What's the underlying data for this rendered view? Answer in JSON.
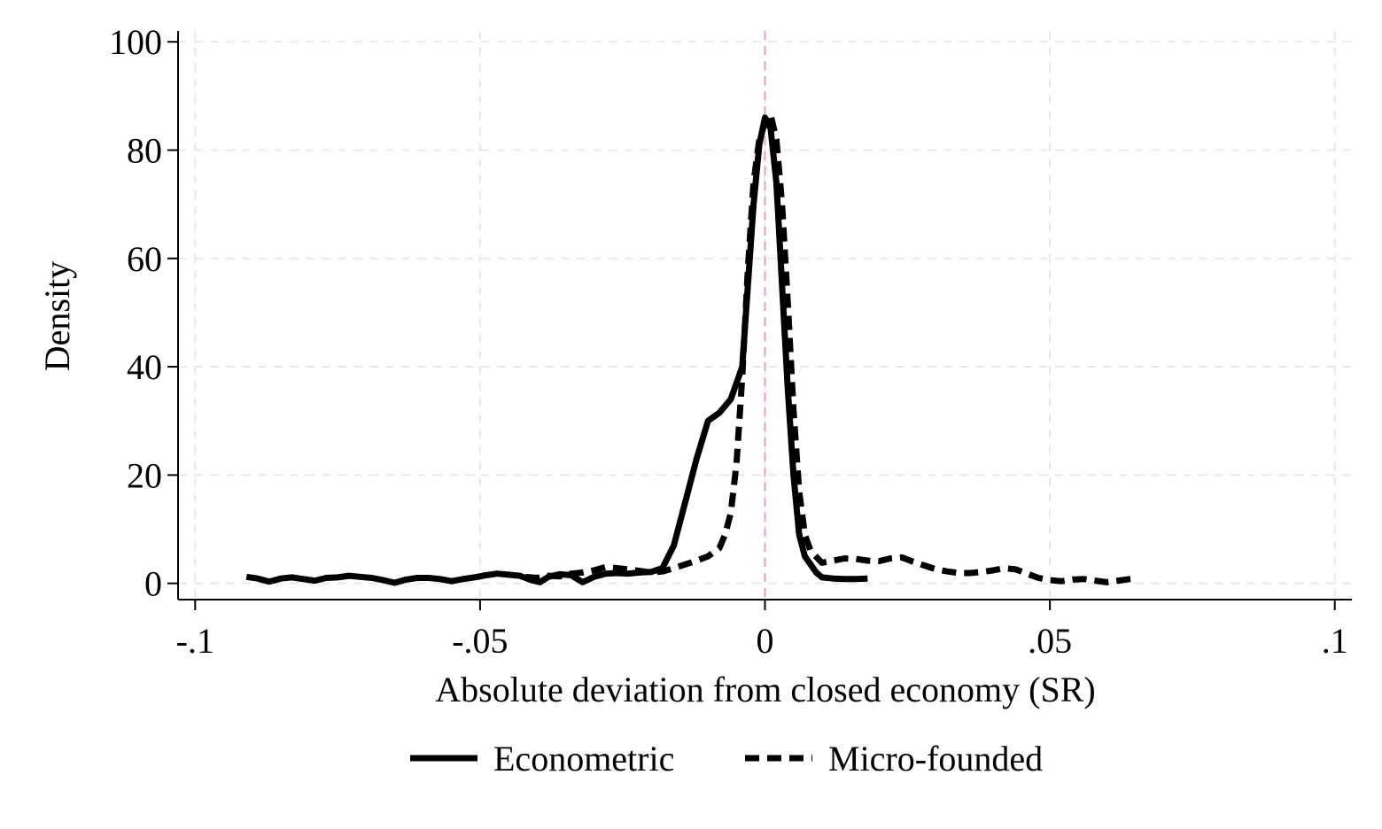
{
  "chart_data": {
    "type": "line",
    "xlabel": "Absolute deviation from closed economy (SR)",
    "ylabel": "Density",
    "xlim": [
      -0.103,
      0.103
    ],
    "ylim": [
      -3,
      102
    ],
    "xticks": [
      {
        "value": -0.1,
        "label": "-.1"
      },
      {
        "value": -0.05,
        "label": "-.05"
      },
      {
        "value": 0,
        "label": "0"
      },
      {
        "value": 0.05,
        "label": ".05"
      },
      {
        "value": 0.1,
        "label": ".1"
      }
    ],
    "yticks": [
      {
        "value": 0,
        "label": "0"
      },
      {
        "value": 20,
        "label": "20"
      },
      {
        "value": 40,
        "label": "40"
      },
      {
        "value": 60,
        "label": "60"
      },
      {
        "value": 80,
        "label": "80"
      },
      {
        "value": 100,
        "label": "100"
      }
    ],
    "grid": true,
    "reference_line": {
      "x": 0,
      "color": "#e8a0a8",
      "style": "dashed"
    },
    "legend_position": "bottom",
    "series": [
      {
        "name": "Econometric",
        "style": "solid",
        "color": "#000000",
        "points": [
          [
            -0.091,
            1.2
          ],
          [
            -0.089,
            0.9
          ],
          [
            -0.087,
            0.3
          ],
          [
            -0.085,
            0.9
          ],
          [
            -0.083,
            1.1
          ],
          [
            -0.081,
            0.8
          ],
          [
            -0.079,
            0.5
          ],
          [
            -0.077,
            1.0
          ],
          [
            -0.075,
            1.1
          ],
          [
            -0.073,
            1.4
          ],
          [
            -0.071,
            1.2
          ],
          [
            -0.069,
            1.0
          ],
          [
            -0.067,
            0.6
          ],
          [
            -0.065,
            0.1
          ],
          [
            -0.063,
            0.7
          ],
          [
            -0.061,
            1.0
          ],
          [
            -0.059,
            1.0
          ],
          [
            -0.057,
            0.8
          ],
          [
            -0.055,
            0.4
          ],
          [
            -0.053,
            0.8
          ],
          [
            -0.051,
            1.1
          ],
          [
            -0.049,
            1.5
          ],
          [
            -0.047,
            1.8
          ],
          [
            -0.045,
            1.6
          ],
          [
            -0.043,
            1.4
          ],
          [
            -0.041,
            0.6
          ],
          [
            -0.0395,
            0.2
          ],
          [
            -0.038,
            1.2
          ],
          [
            -0.036,
            1.7
          ],
          [
            -0.034,
            1.5
          ],
          [
            -0.032,
            0.2
          ],
          [
            -0.03,
            1.2
          ],
          [
            -0.028,
            1.8
          ],
          [
            -0.026,
            1.9
          ],
          [
            -0.024,
            1.8
          ],
          [
            -0.022,
            2.0
          ],
          [
            -0.02,
            2.1
          ],
          [
            -0.018,
            2.8
          ],
          [
            -0.016,
            7.0
          ],
          [
            -0.014,
            15.0
          ],
          [
            -0.012,
            23.0
          ],
          [
            -0.01,
            30.0
          ],
          [
            -0.008,
            31.5
          ],
          [
            -0.006,
            34.0
          ],
          [
            -0.004,
            40.0
          ],
          [
            -0.003,
            55.0
          ],
          [
            -0.002,
            70.0
          ],
          [
            -0.001,
            81.0
          ],
          [
            0.0,
            86.0
          ],
          [
            0.001,
            84.0
          ],
          [
            0.002,
            74.0
          ],
          [
            0.003,
            55.0
          ],
          [
            0.004,
            36.0
          ],
          [
            0.005,
            20.0
          ],
          [
            0.006,
            9.0
          ],
          [
            0.007,
            5.0
          ],
          [
            0.008,
            3.5
          ],
          [
            0.009,
            2.0
          ],
          [
            0.01,
            1.1
          ],
          [
            0.012,
            0.9
          ],
          [
            0.014,
            0.8
          ],
          [
            0.016,
            0.8
          ],
          [
            0.018,
            0.9
          ]
        ]
      },
      {
        "name": "Micro-founded",
        "style": "dashed",
        "color": "#000000",
        "points": [
          [
            -0.042,
            1.2
          ],
          [
            -0.04,
            1.0
          ],
          [
            -0.038,
            1.4
          ],
          [
            -0.036,
            1.3
          ],
          [
            -0.034,
            1.8
          ],
          [
            -0.032,
            2.0
          ],
          [
            -0.03,
            2.4
          ],
          [
            -0.028,
            3.0
          ],
          [
            -0.026,
            2.8
          ],
          [
            -0.024,
            2.6
          ],
          [
            -0.022,
            2.3
          ],
          [
            -0.02,
            2.0
          ],
          [
            -0.018,
            2.2
          ],
          [
            -0.016,
            2.8
          ],
          [
            -0.014,
            3.5
          ],
          [
            -0.012,
            4.2
          ],
          [
            -0.01,
            5.0
          ],
          [
            -0.008,
            6.5
          ],
          [
            -0.007,
            9.0
          ],
          [
            -0.006,
            13.0
          ],
          [
            -0.005,
            22.0
          ],
          [
            -0.004,
            38.0
          ],
          [
            -0.003,
            58.0
          ],
          [
            -0.002,
            74.0
          ],
          [
            -0.001,
            82.0
          ],
          [
            0.0,
            85.0
          ],
          [
            0.001,
            86.5
          ],
          [
            0.002,
            82.0
          ],
          [
            0.003,
            70.0
          ],
          [
            0.004,
            52.0
          ],
          [
            0.005,
            32.0
          ],
          [
            0.006,
            17.0
          ],
          [
            0.007,
            9.0
          ],
          [
            0.008,
            6.0
          ],
          [
            0.01,
            3.8
          ],
          [
            0.012,
            4.2
          ],
          [
            0.014,
            4.6
          ],
          [
            0.016,
            4.5
          ],
          [
            0.018,
            4.2
          ],
          [
            0.02,
            4.1
          ],
          [
            0.022,
            4.6
          ],
          [
            0.024,
            4.8
          ],
          [
            0.026,
            4.0
          ],
          [
            0.028,
            3.3
          ],
          [
            0.03,
            2.6
          ],
          [
            0.032,
            2.2
          ],
          [
            0.034,
            1.9
          ],
          [
            0.036,
            1.9
          ],
          [
            0.038,
            2.1
          ],
          [
            0.04,
            2.4
          ],
          [
            0.042,
            2.8
          ],
          [
            0.044,
            2.6
          ],
          [
            0.046,
            1.8
          ],
          [
            0.048,
            1.0
          ],
          [
            0.05,
            0.6
          ],
          [
            0.052,
            0.4
          ],
          [
            0.054,
            0.7
          ],
          [
            0.056,
            0.8
          ],
          [
            0.058,
            0.5
          ],
          [
            0.06,
            0.2
          ],
          [
            0.062,
            0.5
          ],
          [
            0.064,
            0.8
          ],
          [
            0.065,
            0.9
          ]
        ]
      }
    ]
  }
}
